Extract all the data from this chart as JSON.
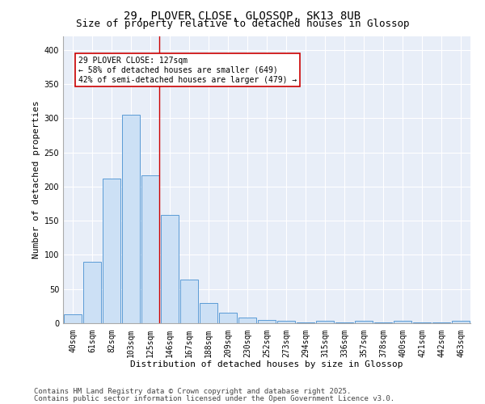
{
  "title_line1": "29, PLOVER CLOSE, GLOSSOP, SK13 8UB",
  "title_line2": "Size of property relative to detached houses in Glossop",
  "xlabel": "Distribution of detached houses by size in Glossop",
  "ylabel": "Number of detached properties",
  "bar_color": "#cce0f5",
  "bar_edge_color": "#5b9bd5",
  "background_color": "#e8eef8",
  "grid_color": "#ffffff",
  "categories": [
    "40sqm",
    "61sqm",
    "82sqm",
    "103sqm",
    "125sqm",
    "146sqm",
    "167sqm",
    "188sqm",
    "209sqm",
    "230sqm",
    "252sqm",
    "273sqm",
    "294sqm",
    "315sqm",
    "336sqm",
    "357sqm",
    "378sqm",
    "400sqm",
    "421sqm",
    "442sqm",
    "463sqm"
  ],
  "values": [
    13,
    90,
    212,
    305,
    217,
    158,
    64,
    30,
    15,
    8,
    5,
    3,
    1,
    3,
    1,
    3,
    1,
    3,
    1,
    1,
    3
  ],
  "ylim": [
    0,
    420
  ],
  "yticks": [
    0,
    50,
    100,
    150,
    200,
    250,
    300,
    350,
    400
  ],
  "marker_bin_index": 4,
  "marker_label_line1": "29 PLOVER CLOSE: 127sqm",
  "marker_label_line2": "← 58% of detached houses are smaller (649)",
  "marker_label_line3": "42% of semi-detached houses are larger (479) →",
  "marker_color": "#cc0000",
  "footnote_line1": "Contains HM Land Registry data © Crown copyright and database right 2025.",
  "footnote_line2": "Contains public sector information licensed under the Open Government Licence v3.0.",
  "title_fontsize": 10,
  "subtitle_fontsize": 9,
  "axis_label_fontsize": 8,
  "tick_fontsize": 7,
  "annotation_fontsize": 7,
  "footnote_fontsize": 6.5
}
